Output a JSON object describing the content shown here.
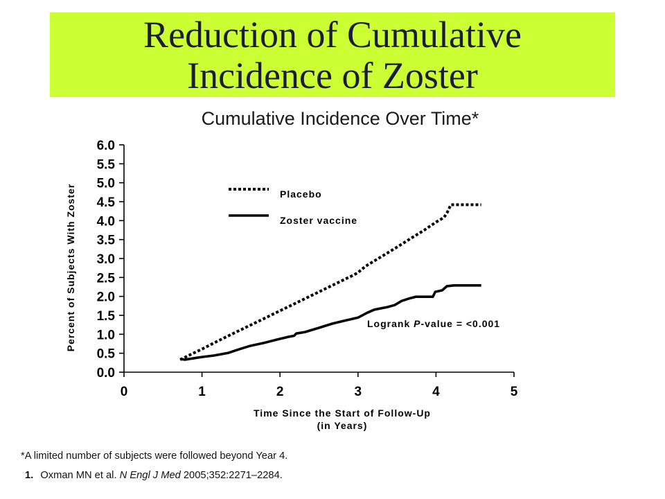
{
  "slide": {
    "title_lines": [
      "Reduction of Cumulative",
      "Incidence of Zoster"
    ],
    "banner_color": "#ccff33",
    "title_color": "#1c1c38",
    "footnote": "*A limited number of subjects were followed beyond Year 4.",
    "reference": {
      "number": "1.",
      "authors": "Oxman MN et al.",
      "journal": "N Engl J Med",
      "citation": "2005;352:2271–2284."
    }
  },
  "chart_data": {
    "type": "line",
    "title": "Cumulative Incidence Over Time*",
    "xlabel_lines": [
      "Time Since the Start of Follow-Up",
      "(in Years)"
    ],
    "ylabel": "Percent of Subjects With Zoster",
    "xlim": [
      0,
      5
    ],
    "ylim": [
      0,
      6
    ],
    "x_ticks": [
      0,
      1,
      2,
      3,
      4,
      5
    ],
    "x_tick_labels": [
      "0",
      "1",
      "2",
      "3",
      "4",
      "5"
    ],
    "y_ticks": [
      0,
      0.5,
      1,
      1.5,
      2,
      2.5,
      3,
      3.5,
      4,
      4.5,
      5,
      5.5,
      6
    ],
    "y_tick_labels": [
      "0.0",
      "0.5",
      "1.0",
      "1.5",
      "2.0",
      "2.5",
      "3.0",
      "3.5",
      "4.0",
      "4.5",
      "5.0",
      "5.5",
      "6.0"
    ],
    "grid": false,
    "legend_position": "top-left",
    "series": [
      {
        "name": "Placebo",
        "line_style": "dotted",
        "color": "#000000",
        "points": [
          [
            0.72,
            0.33
          ],
          [
            0.8,
            0.41
          ],
          [
            0.9,
            0.51
          ],
          [
            1.0,
            0.61
          ],
          [
            1.2,
            0.82
          ],
          [
            1.4,
            1.02
          ],
          [
            1.6,
            1.22
          ],
          [
            1.8,
            1.42
          ],
          [
            2.0,
            1.62
          ],
          [
            2.2,
            1.82
          ],
          [
            2.4,
            2.02
          ],
          [
            2.6,
            2.22
          ],
          [
            2.8,
            2.42
          ],
          [
            2.95,
            2.57
          ],
          [
            3.0,
            2.63
          ],
          [
            3.1,
            2.8
          ],
          [
            3.3,
            3.05
          ],
          [
            3.5,
            3.3
          ],
          [
            3.7,
            3.56
          ],
          [
            3.85,
            3.75
          ],
          [
            4.0,
            3.96
          ],
          [
            4.1,
            4.08
          ],
          [
            4.14,
            4.2
          ],
          [
            4.19,
            4.42
          ],
          [
            4.58,
            4.42
          ]
        ]
      },
      {
        "name": "Zoster vaccine",
        "line_style": "solid",
        "color": "#000000",
        "points": [
          [
            0.72,
            0.35
          ],
          [
            0.78,
            0.33
          ],
          [
            0.9,
            0.37
          ],
          [
            1.0,
            0.4
          ],
          [
            1.16,
            0.44
          ],
          [
            1.34,
            0.51
          ],
          [
            1.47,
            0.6
          ],
          [
            1.61,
            0.69
          ],
          [
            1.79,
            0.77
          ],
          [
            1.96,
            0.86
          ],
          [
            2.1,
            0.93
          ],
          [
            2.18,
            0.96
          ],
          [
            2.21,
            1.02
          ],
          [
            2.32,
            1.06
          ],
          [
            2.5,
            1.17
          ],
          [
            2.67,
            1.28
          ],
          [
            2.85,
            1.37
          ],
          [
            3.0,
            1.44
          ],
          [
            3.12,
            1.57
          ],
          [
            3.21,
            1.65
          ],
          [
            3.38,
            1.72
          ],
          [
            3.47,
            1.77
          ],
          [
            3.56,
            1.88
          ],
          [
            3.65,
            1.94
          ],
          [
            3.74,
            1.99
          ],
          [
            3.96,
            1.99
          ],
          [
            3.99,
            2.12
          ],
          [
            4.08,
            2.16
          ],
          [
            4.14,
            2.27
          ],
          [
            4.23,
            2.29
          ],
          [
            4.58,
            2.29
          ]
        ]
      }
    ],
    "annotation": {
      "prefix": "Logrank ",
      "italic": "P",
      "suffix": "-value = <0.001"
    }
  }
}
